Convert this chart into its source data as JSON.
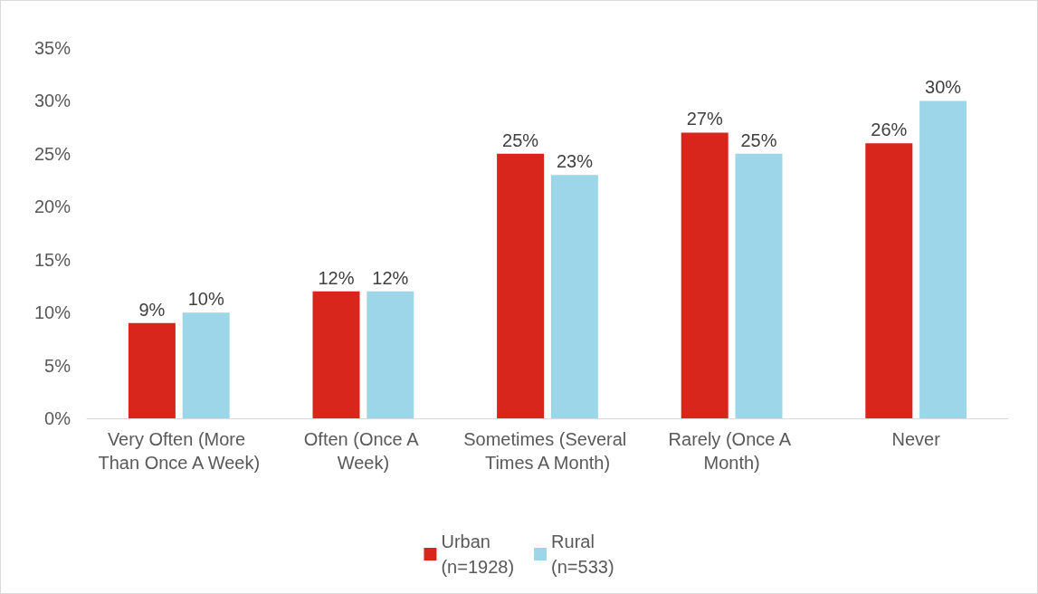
{
  "chart_data": {
    "type": "bar",
    "categories": [
      "Very Often (More Than Once A Week)",
      "Often (Once A Week)",
      "Sometimes (Several Times A Month)",
      "Rarely (Once A Month)",
      "Never"
    ],
    "series": [
      {
        "name": "Urban\n(n=1928)",
        "color": "#d9261c",
        "values": [
          9,
          12,
          25,
          27,
          26
        ],
        "value_labels": [
          "9%",
          "12%",
          "25%",
          "27%",
          "26%"
        ]
      },
      {
        "name": "Rural\n(n=533)",
        "color": "#9dd6e9",
        "values": [
          10,
          12,
          23,
          25,
          30
        ],
        "value_labels": [
          "10%",
          "12%",
          "23%",
          "25%",
          "30%"
        ]
      }
    ],
    "ylim": [
      0,
      35
    ],
    "yticks": [
      {
        "value": 0,
        "label": "0%"
      },
      {
        "value": 5,
        "label": "5%"
      },
      {
        "value": 10,
        "label": "10%"
      },
      {
        "value": 15,
        "label": "15%"
      },
      {
        "value": 20,
        "label": "20%"
      },
      {
        "value": 25,
        "label": "25%"
      },
      {
        "value": 30,
        "label": "30%"
      },
      {
        "value": 35,
        "label": "35%"
      }
    ],
    "grid": false,
    "legend": "bottom"
  }
}
